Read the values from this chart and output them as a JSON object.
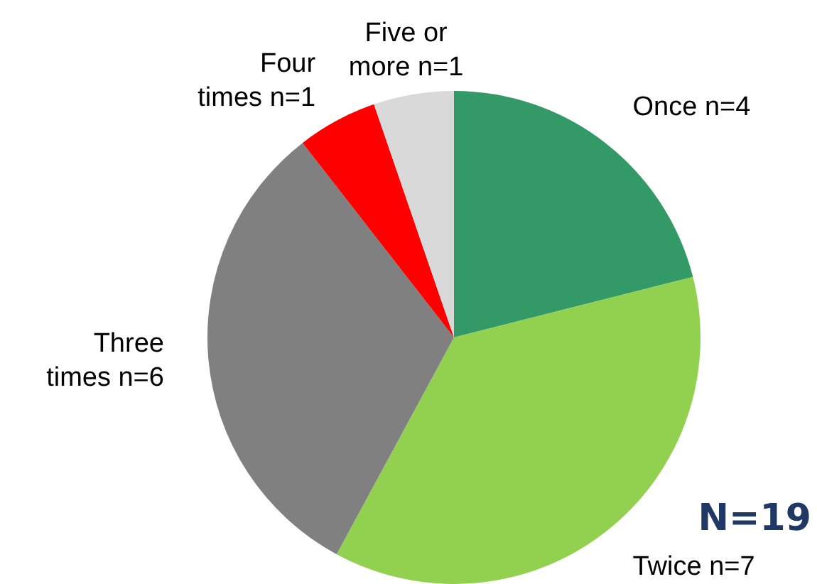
{
  "chart_data": {
    "type": "pie",
    "categories": [
      "Once n=4",
      "Twice n=7",
      "Three times n=6",
      "Four times n=1",
      "Five or more n=1"
    ],
    "values": [
      4,
      7,
      6,
      1,
      1
    ],
    "colors": [
      "#339966",
      "#92d050",
      "#808080",
      "#ff0000",
      "#d9d9d9"
    ],
    "legend": false,
    "annotations": [
      "N=19"
    ]
  }
}
